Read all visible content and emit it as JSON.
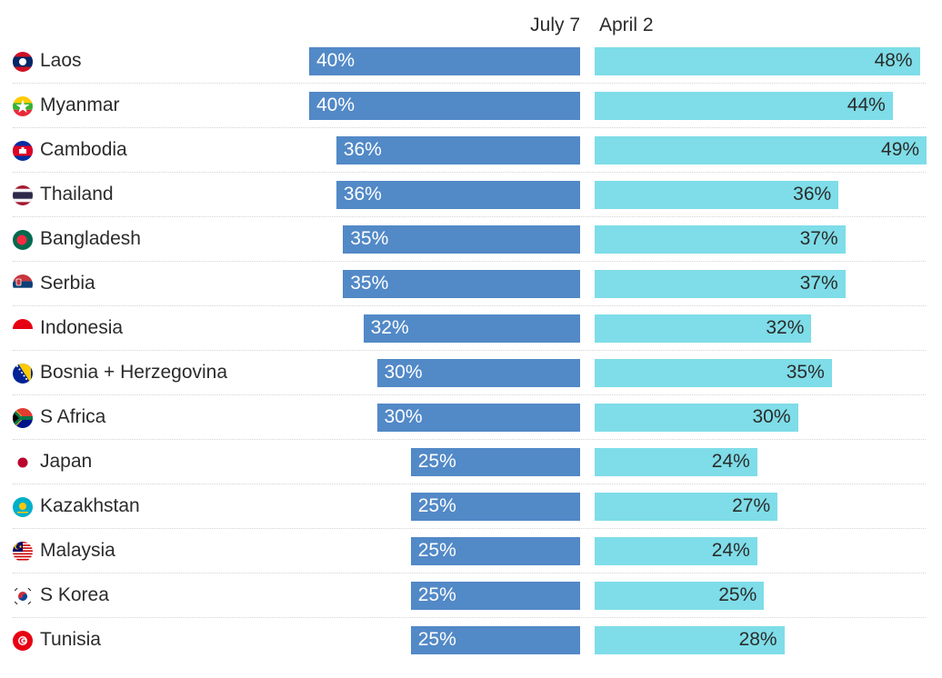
{
  "chart_data": {
    "type": "bar",
    "orientation": "horizontal",
    "series": [
      {
        "name": "July 7",
        "color": "#5289c7",
        "values": [
          40,
          40,
          36,
          36,
          35,
          35,
          32,
          30,
          30,
          25,
          25,
          25,
          25,
          25
        ]
      },
      {
        "name": "April 2",
        "color": "#7edde8",
        "values": [
          48,
          44,
          49,
          36,
          37,
          37,
          32,
          35,
          30,
          24,
          27,
          24,
          25,
          28
        ]
      }
    ],
    "categories": [
      "Laos",
      "Myanmar",
      "Cambodia",
      "Thailand",
      "Bangladesh",
      "Serbia",
      "Indonesia",
      "Bosnia + Herzegovina",
      "S Africa",
      "Japan",
      "Kazakhstan",
      "Malaysia",
      "S Korea",
      "Tunisia"
    ],
    "labels_a": [
      "40%",
      "40%",
      "36%",
      "36%",
      "35%",
      "35%",
      "32%",
      "30%",
      "30%",
      "25%",
      "25%",
      "25%",
      "25%",
      "25%"
    ],
    "labels_b": [
      "48%",
      "44%",
      "49%",
      "36%",
      "37%",
      "37%",
      "32%",
      "35%",
      "30%",
      "24%",
      "27%",
      "24%",
      "25%",
      "28%"
    ],
    "flags": [
      "laos-flag",
      "myanmar-flag",
      "cambodia-flag",
      "thailand-flag",
      "bangladesh-flag",
      "serbia-flag",
      "indonesia-flag",
      "bosnia-flag",
      "south-africa-flag",
      "japan-flag",
      "kazakhstan-flag",
      "malaysia-flag",
      "south-korea-flag",
      "tunisia-flag"
    ],
    "title": "",
    "xlabel": "",
    "ylabel": "",
    "unit": "%",
    "xlim": [
      0,
      49
    ]
  }
}
